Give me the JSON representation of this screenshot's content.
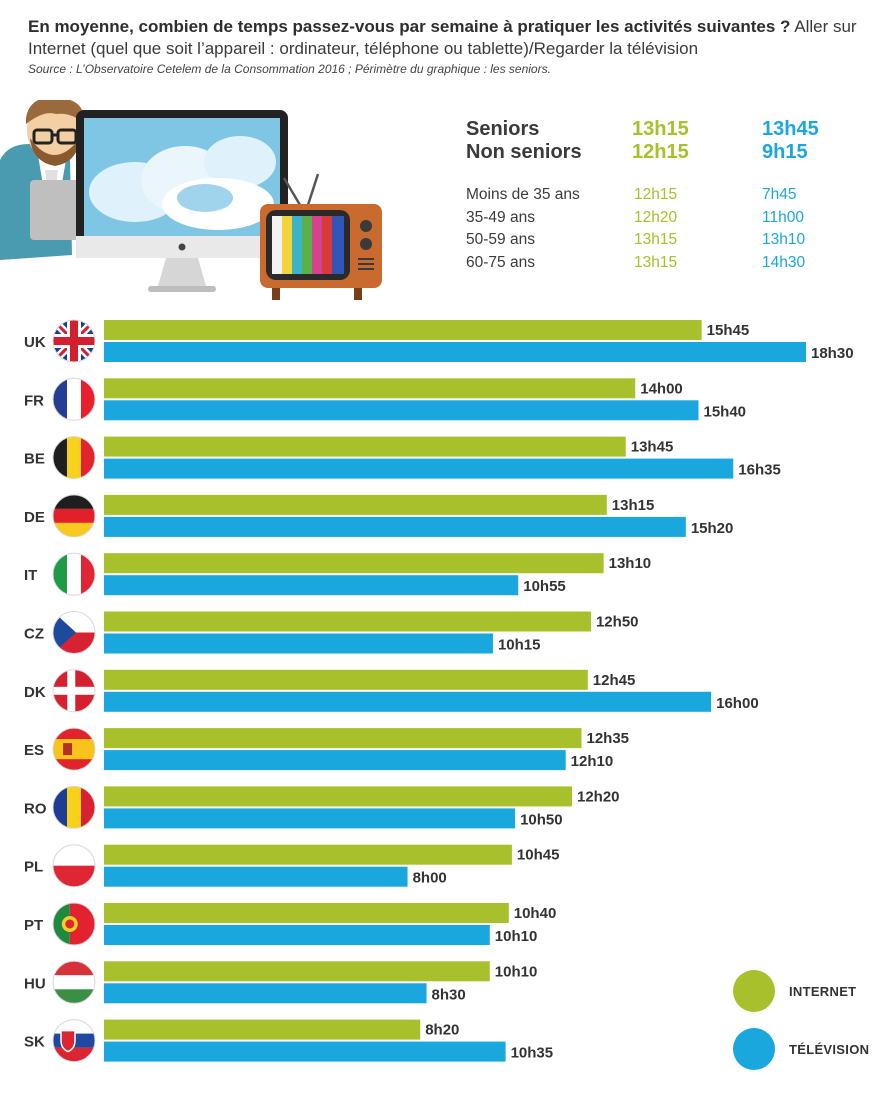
{
  "header": {
    "question_bold": "En moyenne, combien de temps passez-vous par semaine à pratiquer les activités suivantes ?",
    "question_rest": " Aller sur Internet (quel que soit l’appareil : ordinateur, téléphone ou tablette)/Regarder la télévision",
    "source": "Source : L’Observatoire Cetelem de la Consommation 2016 ; Périmètre du graphique : les seniors."
  },
  "summary": {
    "main": [
      {
        "label": "Seniors",
        "internet": "13h15",
        "tv": "13h45"
      },
      {
        "label": "Non seniors",
        "internet": "12h15",
        "tv": "9h15"
      }
    ],
    "ages": [
      {
        "label": "Moins de 35 ans",
        "internet": "12h15",
        "tv": "7h45"
      },
      {
        "label": "35-49 ans",
        "internet": "12h20",
        "tv": "11h00"
      },
      {
        "label": "50-59 ans",
        "internet": "13h15",
        "tv": "13h10"
      },
      {
        "label": "60-75 ans",
        "internet": "13h15",
        "tv": "14h30"
      }
    ]
  },
  "colors": {
    "internet": "#a7c02b",
    "tv": "#1aa7de",
    "text": "#333333"
  },
  "legend": {
    "internet": "INTERNET",
    "tv": "TÉLÉVISION"
  },
  "chart_data": {
    "type": "bar",
    "orientation": "horizontal",
    "unit": "hours per week",
    "categories": [
      "UK",
      "FR",
      "BE",
      "DE",
      "IT",
      "CZ",
      "DK",
      "ES",
      "RO",
      "PL",
      "PT",
      "HU",
      "SK"
    ],
    "series": [
      {
        "name": "INTERNET",
        "values": [
          15.75,
          14.0,
          13.75,
          13.25,
          13.1667,
          12.8333,
          12.75,
          12.5833,
          12.3333,
          10.75,
          10.6667,
          10.1667,
          8.3333
        ],
        "labels": [
          "15h45",
          "14h00",
          "13h45",
          "13h15",
          "13h10",
          "12h50",
          "12h45",
          "12h35",
          "12h20",
          "10h45",
          "10h40",
          "10h10",
          "8h20"
        ]
      },
      {
        "name": "TÉLÉVISION",
        "values": [
          18.5,
          15.6667,
          16.5833,
          15.3333,
          10.9167,
          10.25,
          16.0,
          12.1667,
          10.8333,
          8.0,
          10.1667,
          8.5,
          10.5833
        ],
        "labels": [
          "18h30",
          "15h40",
          "16h35",
          "15h20",
          "10h55",
          "10h15",
          "16h00",
          "12h10",
          "10h50",
          "8h00",
          "10h10",
          "8h30",
          "10h35"
        ]
      }
    ],
    "xlim": [
      0,
      18.5
    ],
    "title": "",
    "xlabel": "",
    "ylabel": ""
  }
}
